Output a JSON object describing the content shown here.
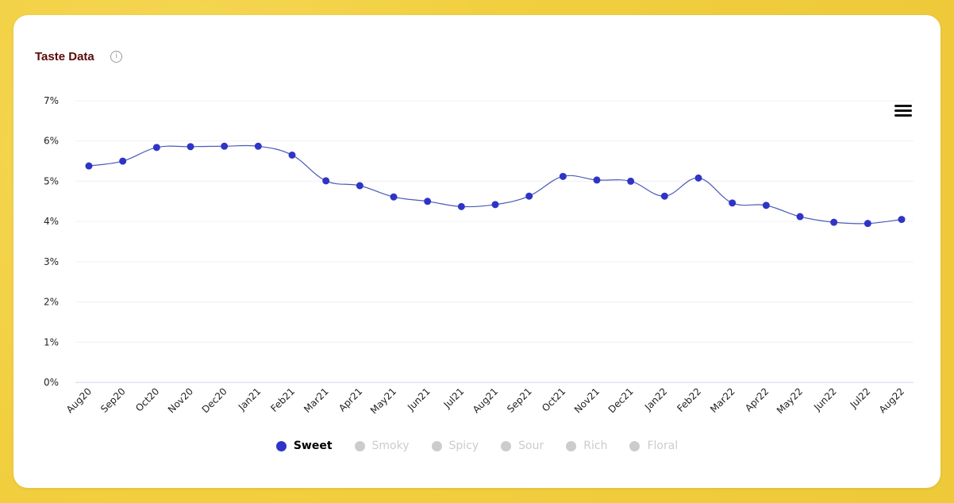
{
  "header": {
    "title": "Taste Data",
    "info_icon": "info-icon"
  },
  "menu": {
    "icon": "hamburger-menu-icon"
  },
  "colors": {
    "series": "#2f34c6",
    "line": "#4a5ab8",
    "inactive": "#cccccc",
    "title": "#5a0a0a"
  },
  "legend": [
    {
      "label": "Sweet",
      "active": true
    },
    {
      "label": "Smoky",
      "active": false
    },
    {
      "label": "Spicy",
      "active": false
    },
    {
      "label": "Sour",
      "active": false
    },
    {
      "label": "Rich",
      "active": false
    },
    {
      "label": "Floral",
      "active": false
    }
  ],
  "chart_data": {
    "type": "line",
    "categories": [
      "Aug20",
      "Sep20",
      "Oct20",
      "Nov20",
      "Dec20",
      "Jan21",
      "Feb21",
      "Mar21",
      "Apr21",
      "May21",
      "Jun21",
      "Jul21",
      "Aug21",
      "Sep21",
      "Oct21",
      "Nov21",
      "Dec21",
      "Jan22",
      "Feb22",
      "Mar22",
      "Apr22",
      "May22",
      "Jun22",
      "Jul22",
      "Aug22"
    ],
    "series": [
      {
        "name": "Sweet",
        "values": [
          5.38,
          5.5,
          5.84,
          5.86,
          5.87,
          5.87,
          5.65,
          5.01,
          4.89,
          4.61,
          4.5,
          4.37,
          4.42,
          4.63,
          5.12,
          5.03,
          5.0,
          4.63,
          5.08,
          4.46,
          4.4,
          4.12,
          3.98,
          3.95,
          4.05
        ]
      }
    ],
    "ylim": [
      0,
      7
    ],
    "yticks": [
      "0%",
      "1%",
      "2%",
      "3%",
      "4%",
      "5%",
      "6%",
      "7%"
    ],
    "xlabel": "",
    "ylabel": "",
    "grid": true,
    "legend_position": "bottom"
  }
}
